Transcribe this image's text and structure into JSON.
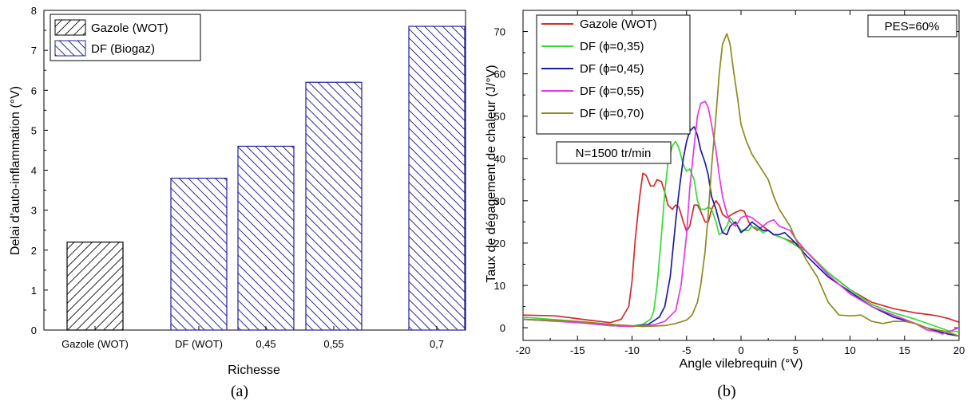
{
  "chart_data": [
    {
      "type": "bar",
      "caption": "(a)",
      "categories": [
        "Gazole (WOT)",
        "DF (WOT)",
        "0,45",
        "0,55",
        "0,7"
      ],
      "series": [
        {
          "name": "Gazole (WOT)",
          "color": "#000000",
          "pattern": "hatch-back",
          "values": [
            2.2,
            null,
            null,
            null,
            null
          ]
        },
        {
          "name": "DF (Biogaz)",
          "color": "#1f1f9a",
          "pattern": "hatch-forward",
          "values": [
            null,
            3.8,
            4.6,
            6.2,
            7.6
          ]
        }
      ],
      "xlabel": "Richesse",
      "ylabel": "Delai d'auto-inflammation (°V)",
      "ylim": [
        0,
        8
      ],
      "yticks": [
        "0",
        "1",
        "2",
        "3",
        "4",
        "5",
        "6",
        "7",
        "8"
      ],
      "grid": false,
      "legend_position": "top-left"
    },
    {
      "type": "line",
      "caption": "(b)",
      "xlabel": "Angle vilebrequin (°V)",
      "ylabel": "Taux de dégagement de chaleur (J/°V)",
      "xlim": [
        -20,
        20
      ],
      "ylim": [
        -3,
        75
      ],
      "xticks": [
        "-20",
        "-15",
        "-10",
        "-5",
        "0",
        "5",
        "10",
        "15",
        "20"
      ],
      "yticks": [
        "0",
        "10",
        "20",
        "30",
        "40",
        "50",
        "60",
        "70"
      ],
      "annotations": [
        "PES=60%",
        "N=1500 tr/min"
      ],
      "grid": false,
      "legend_position": "top-left",
      "series": [
        {
          "name": "Gazole (WOT)",
          "color": "#d42a2a",
          "x": [
            -20,
            -17,
            -14,
            -12,
            -11,
            -10.3,
            -10,
            -9.7,
            -9.3,
            -9,
            -8.7,
            -8.3,
            -8,
            -7.7,
            -7.3,
            -7,
            -6.7,
            -6.3,
            -6,
            -5.7,
            -5.3,
            -5,
            -4.7,
            -4.3,
            -4,
            -3.7,
            -3.3,
            -3,
            -2.7,
            -2.3,
            -2,
            -1.7,
            -1.3,
            -1,
            -0.7,
            -0.3,
            0,
            0.3,
            0.7,
            1,
            1.5,
            2,
            3,
            4,
            5,
            6,
            8,
            10,
            12,
            14,
            16,
            17,
            18,
            19,
            20
          ],
          "y": [
            3,
            2.8,
            1.8,
            1.2,
            2,
            5,
            11,
            21,
            31,
            36.5,
            36,
            33.5,
            33.5,
            35,
            34.5,
            32,
            29,
            28,
            29,
            28.5,
            25,
            22.8,
            24,
            29,
            29,
            27.5,
            25,
            25,
            28,
            30,
            29,
            26.8,
            26,
            26.5,
            27,
            27.5,
            27.8,
            27.5,
            25,
            24,
            23,
            24,
            22,
            21,
            20,
            18,
            13,
            9,
            6,
            4.5,
            3.5,
            3.2,
            2.8,
            2.2,
            1.3
          ]
        },
        {
          "name": "DF (ϕ=0,35)",
          "color": "#35dc35",
          "x": [
            -20,
            -15,
            -12,
            -10,
            -9,
            -8.3,
            -8,
            -7.7,
            -7.3,
            -7,
            -6.7,
            -6.3,
            -6,
            -5.7,
            -5.3,
            -5,
            -4.7,
            -4.3,
            -4,
            -3.7,
            -3.3,
            -3,
            -2.7,
            -2.3,
            -2,
            -1.7,
            -1.3,
            -1,
            -0.7,
            -0.3,
            0,
            0.3,
            0.7,
            1,
            1.5,
            2,
            2.5,
            3,
            4,
            5,
            6,
            8,
            10,
            12,
            14,
            16,
            18,
            19,
            20
          ],
          "y": [
            2.5,
            1.5,
            0.8,
            0.4,
            0.8,
            2,
            4,
            10,
            22,
            32,
            39,
            43,
            44,
            42.5,
            38.5,
            37,
            37.5,
            35,
            30,
            28,
            28,
            28.5,
            28,
            25,
            22,
            22.5,
            24,
            26,
            25,
            24,
            23,
            23,
            23,
            24,
            23.5,
            22.5,
            23,
            22,
            21,
            19.5,
            18,
            13,
            9,
            5.5,
            3.5,
            2,
            0.2,
            -0.7,
            -1
          ]
        },
        {
          "name": "DF (ϕ=0,45)",
          "color": "#1c1ca0",
          "x": [
            -20,
            -15,
            -12,
            -10,
            -8.5,
            -7.5,
            -7,
            -6.5,
            -6,
            -5.7,
            -5.3,
            -5,
            -4.7,
            -4.3,
            -4,
            -3.7,
            -3.3,
            -3,
            -2.7,
            -2.3,
            -2,
            -1.7,
            -1.3,
            -1,
            -0.5,
            0,
            0.5,
            1,
            1.5,
            2,
            2.5,
            3,
            3.5,
            4,
            5,
            6,
            8,
            10,
            12,
            14,
            16,
            17,
            18,
            19,
            20
          ],
          "y": [
            2,
            1.3,
            0.5,
            0.3,
            0.8,
            2.5,
            5,
            12,
            25,
            32,
            40,
            44,
            46.5,
            47.5,
            45.5,
            42,
            39,
            36,
            31,
            28,
            25,
            22.5,
            22,
            24,
            25,
            22.5,
            23.5,
            25,
            24,
            23,
            23,
            22,
            22,
            22.5,
            20,
            17,
            12,
            8.5,
            5,
            2.5,
            1,
            0,
            -0.8,
            -1.5,
            -2
          ]
        },
        {
          "name": "DF (ϕ=0,55)",
          "color": "#e23ae2",
          "x": [
            -20,
            -15,
            -12,
            -10,
            -8,
            -7,
            -6,
            -5.5,
            -5,
            -4.7,
            -4.3,
            -4,
            -3.7,
            -3.3,
            -3,
            -2.7,
            -2.3,
            -2,
            -1.7,
            -1.3,
            -1,
            -0.5,
            0,
            0.5,
            1,
            1.5,
            2,
            2.5,
            3,
            3.5,
            4,
            4.5,
            5,
            6,
            8,
            10,
            12,
            14,
            16,
            17,
            18,
            18.5,
            19,
            20
          ],
          "y": [
            2,
            1.2,
            0.5,
            0.3,
            0.7,
            1.5,
            4,
            10,
            22,
            33,
            43,
            50,
            53,
            53.5,
            52,
            48,
            42,
            36,
            31,
            27,
            25,
            24,
            26,
            26.5,
            26,
            25,
            24,
            25,
            25.5,
            24,
            23.5,
            23,
            21,
            18,
            12.5,
            8,
            5,
            3,
            1,
            -0.5,
            -1,
            -1.5,
            -1,
            0
          ]
        },
        {
          "name": "DF (ϕ=0,70)",
          "color": "#8b8b1e",
          "x": [
            -20,
            -15,
            -12,
            -9,
            -7,
            -6,
            -5,
            -4.5,
            -4,
            -3.7,
            -3.3,
            -3,
            -2.7,
            -2.3,
            -2,
            -1.7,
            -1.3,
            -1,
            -0.7,
            -0.3,
            0,
            0.5,
            1,
            1.5,
            2,
            2.5,
            3,
            3.5,
            4,
            4.5,
            5,
            6,
            7,
            8,
            9,
            10,
            11,
            12,
            13,
            14,
            15,
            16,
            17,
            18,
            19,
            20
          ],
          "y": [
            2,
            1.5,
            0.8,
            0.3,
            0.5,
            1,
            1.8,
            3,
            6,
            10,
            18,
            27,
            38,
            50,
            60,
            67,
            69.5,
            67,
            61,
            54,
            48,
            44,
            41,
            39,
            37,
            35,
            31,
            28,
            26,
            24,
            21,
            16,
            12,
            6,
            3,
            2.8,
            3,
            1.5,
            1,
            1.5,
            1.5,
            1,
            0,
            -0.5,
            -1,
            -2
          ]
        }
      ]
    }
  ]
}
